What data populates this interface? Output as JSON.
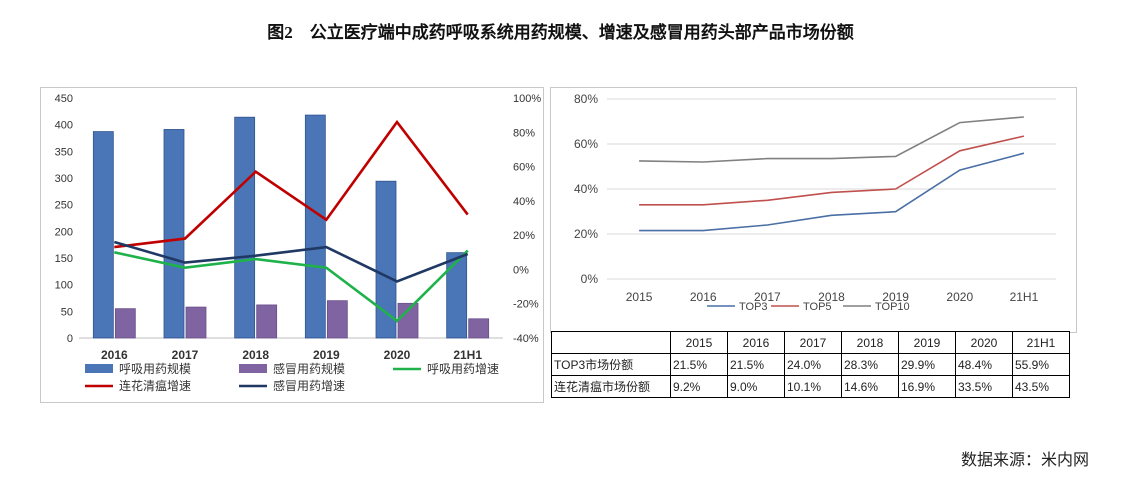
{
  "title": "图2　公立医疗端中成药呼吸系统用药规模、增速及感冒用药头部产品市场份额",
  "source": "数据来源：米内网",
  "colors": {
    "respiratory_scale": "#4a76b7",
    "cold_scale": "#8064a2",
    "respiratory_growth": "#1fb14a",
    "lianhua_growth": "#c00000",
    "cold_growth": "#1f3864",
    "top3": "#4a6fa5",
    "top5": "#c0504d",
    "top10": "#808080"
  },
  "chart_data": [
    {
      "type": "bar",
      "categories": [
        "2016",
        "2017",
        "2018",
        "2019",
        "2020",
        "21H1"
      ],
      "ylim": [
        0,
        450
      ],
      "yticks": [
        "0",
        "50",
        "100",
        "150",
        "200",
        "250",
        "300",
        "350",
        "400",
        "450"
      ],
      "y2lim": [
        -40,
        100
      ],
      "y2ticks": [
        "-40%",
        "-20%",
        "0%",
        "20%",
        "40%",
        "60%",
        "80%",
        "100%"
      ],
      "bar_series": [
        {
          "name": "呼吸用药规模",
          "values": [
            387,
            391,
            414,
            418,
            294,
            160
          ]
        },
        {
          "name": "感冒用药规模",
          "values": [
            55,
            58,
            62,
            70,
            65,
            36
          ]
        }
      ],
      "line_series": [
        {
          "name": "呼吸用药增速",
          "values": [
            10,
            1,
            6,
            1,
            -30,
            11
          ]
        },
        {
          "name": "连花清瘟增速",
          "values": [
            13,
            18,
            57,
            29,
            86,
            32
          ]
        },
        {
          "name": "感冒用药增速",
          "values": [
            16,
            4,
            8,
            13,
            -7,
            9
          ]
        }
      ],
      "legend": [
        "呼吸用药规模",
        "感冒用药规模",
        "呼吸用药增速",
        "连花清瘟增速",
        "感冒用药增速"
      ],
      "legend_position": "bottom"
    },
    {
      "type": "line",
      "x": [
        "2015",
        "2016",
        "2017",
        "2018",
        "2019",
        "2020",
        "21H1"
      ],
      "ylim": [
        0,
        80
      ],
      "yticks": [
        "0%",
        "20%",
        "40%",
        "60%",
        "80%"
      ],
      "series": [
        {
          "name": "TOP3",
          "values": [
            21.5,
            21.5,
            24.0,
            28.3,
            29.9,
            48.4,
            55.9
          ]
        },
        {
          "name": "TOP5",
          "values": [
            33,
            33,
            35,
            38.5,
            40,
            57,
            63.5
          ]
        },
        {
          "name": "TOP10",
          "values": [
            52.5,
            52,
            53.5,
            53.5,
            54.5,
            69.5,
            72
          ]
        }
      ],
      "legend_position": "bottom"
    },
    {
      "type": "table",
      "columns": [
        "2015",
        "2016",
        "2017",
        "2018",
        "2019",
        "2020",
        "21H1"
      ],
      "rows": [
        {
          "label": "TOP3市场份额",
          "values": [
            "21.5%",
            "21.5%",
            "24.0%",
            "28.3%",
            "29.9%",
            "48.4%",
            "55.9%"
          ]
        },
        {
          "label": "连花清瘟市场份额",
          "values": [
            "9.2%",
            "9.0%",
            "10.1%",
            "14.6%",
            "16.9%",
            "33.5%",
            "43.5%"
          ]
        }
      ]
    }
  ]
}
